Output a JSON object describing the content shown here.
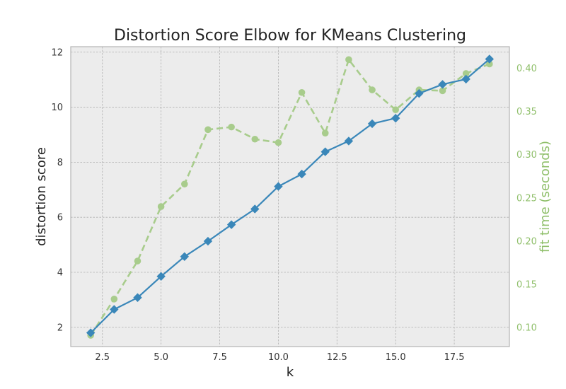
{
  "chart_data": {
    "type": "line",
    "title": "Distortion Score Elbow for KMeans Clustering",
    "xlabel": "k",
    "ylabel": "distortion score",
    "y2label": "fit time (seconds)",
    "x": [
      2,
      3,
      4,
      5,
      6,
      7,
      8,
      9,
      10,
      11,
      12,
      13,
      14,
      15,
      16,
      17,
      18,
      19
    ],
    "xlim": [
      1.15,
      19.85
    ],
    "ylim": [
      1.3,
      12.2
    ],
    "y2lim": [
      0.078,
      0.425
    ],
    "xticks": [
      2.5,
      5.0,
      7.5,
      10.0,
      12.5,
      15.0,
      17.5
    ],
    "xtick_labels": [
      "2.5",
      "5.0",
      "7.5",
      "10.0",
      "12.5",
      "15.0",
      "17.5"
    ],
    "yticks": [
      2,
      4,
      6,
      8,
      10,
      12
    ],
    "ytick_labels": [
      "2",
      "4",
      "6",
      "8",
      "10",
      "12"
    ],
    "y2ticks": [
      0.1,
      0.15,
      0.2,
      0.25,
      0.3,
      0.35,
      0.4
    ],
    "y2tick_labels": [
      "0.10",
      "0.15",
      "0.20",
      "0.25",
      "0.30",
      "0.35",
      "0.40"
    ],
    "grid": true,
    "series": [
      {
        "axis": "left",
        "marker": "diamond",
        "style": "solid",
        "color": "#3a87b9",
        "values": [
          1.8,
          2.65,
          3.08,
          3.85,
          4.57,
          5.13,
          5.73,
          6.3,
          7.12,
          7.57,
          8.38,
          8.77,
          9.4,
          9.6,
          10.5,
          10.83,
          11.02,
          11.75
        ]
      },
      {
        "axis": "right",
        "marker": "circle",
        "style": "dashed",
        "color": "#a8cc8c",
        "values": [
          0.091,
          0.133,
          0.177,
          0.24,
          0.266,
          0.329,
          0.332,
          0.318,
          0.314,
          0.372,
          0.325,
          0.41,
          0.375,
          0.352,
          0.375,
          0.374,
          0.394,
          0.405
        ]
      }
    ],
    "colors": {
      "left_axis_text": "#333333",
      "right_axis_text": "#8fbf6a",
      "plot_background": "#ececec",
      "frame": "#b5b5b5"
    }
  }
}
